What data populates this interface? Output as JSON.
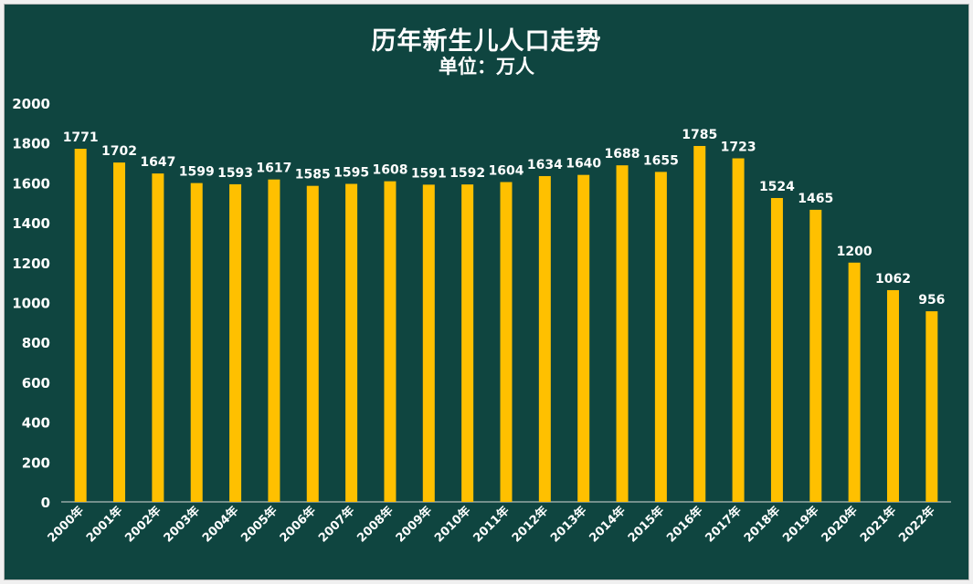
{
  "chart_data": {
    "type": "bar",
    "title": "历年新生儿人口走势",
    "subtitle": "单位：万人",
    "categories": [
      "2000年",
      "2001年",
      "2002年",
      "2003年",
      "2004年",
      "2005年",
      "2006年",
      "2007年",
      "2008年",
      "2009年",
      "2010年",
      "2011年",
      "2012年",
      "2013年",
      "2014年",
      "2015年",
      "2016年",
      "2017年",
      "2018年",
      "2019年",
      "2020年",
      "2021年",
      "2022年"
    ],
    "values": [
      1771,
      1702,
      1647,
      1599,
      1593,
      1617,
      1585,
      1595,
      1608,
      1591,
      1592,
      1604,
      1634,
      1640,
      1688,
      1655,
      1785,
      1723,
      1524,
      1465,
      1200,
      1062,
      956
    ],
    "ylim": [
      0,
      2000
    ],
    "yticks": [
      0,
      200,
      400,
      600,
      800,
      1000,
      1200,
      1400,
      1600,
      1800,
      2000
    ],
    "grid": false,
    "legend": "none",
    "bar_color": "#ffc000",
    "background_color": "#0f4540",
    "text_color": "#ffffff"
  }
}
